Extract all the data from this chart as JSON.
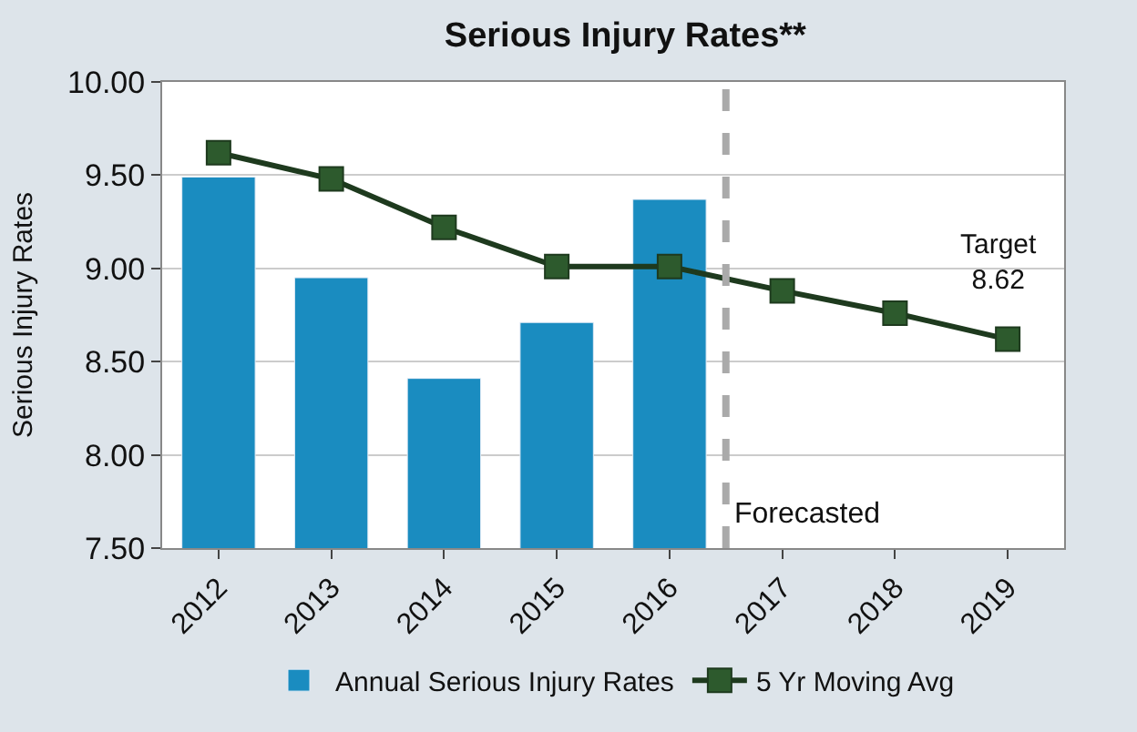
{
  "chart_data": {
    "type": "bar",
    "title": "Serious Injury Rates**",
    "ylabel": "Serious Injury Rates",
    "x": [
      2012,
      2013,
      2014,
      2015,
      2016,
      2017,
      2018,
      2019
    ],
    "xlim": [
      2011.5,
      2019.5
    ],
    "xticks": [
      2012,
      2013,
      2014,
      2015,
      2016,
      2017,
      2018,
      2019
    ],
    "series": [
      {
        "name": "Annual Serious Injury Rates",
        "color": "#1a8cc0",
        "values": [
          9.49,
          8.95,
          8.41,
          8.71,
          9.37,
          null,
          null,
          null
        ]
      },
      {
        "name": "5 Yr Moving Avg",
        "type": "line",
        "color": "#1e3a1e",
        "marker": "square",
        "values": [
          9.62,
          9.48,
          9.22,
          9.01,
          9.01,
          8.88,
          8.76,
          8.62
        ]
      }
    ],
    "ylim": [
      7.5,
      10.0
    ],
    "yticks": [
      {
        "value": 7.5,
        "label": "7.50"
      },
      {
        "value": 8.0,
        "label": "8.00"
      },
      {
        "value": 8.5,
        "label": "8.50"
      },
      {
        "value": 9.0,
        "label": "9.00"
      },
      {
        "value": 9.5,
        "label": "9.50"
      },
      {
        "value": 10.0,
        "label": "10.00"
      }
    ],
    "grid": "y",
    "legend": "bottom",
    "ref_lines": [
      {
        "axis": "x",
        "value": 2016.5,
        "color": "#aaaaaa",
        "line_style": "dashed"
      }
    ],
    "annotations": [
      {
        "text": "Target\n8.62",
        "x": 2019,
        "y": 8.62
      },
      "Forecasted"
    ]
  }
}
